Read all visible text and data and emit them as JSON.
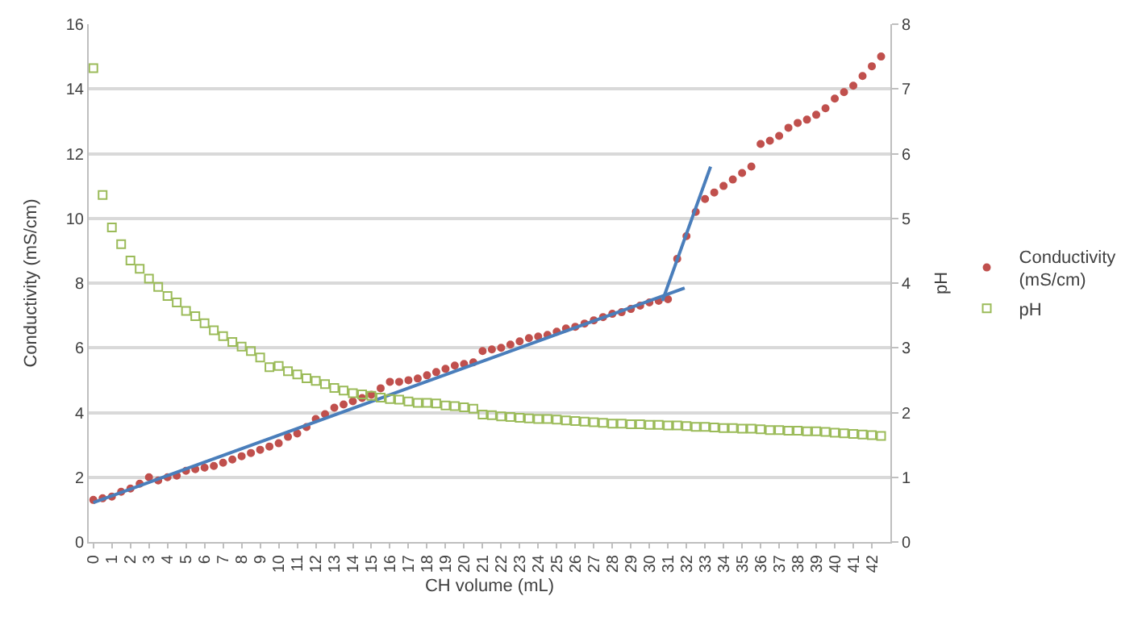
{
  "chart_data": {
    "type": "scatter",
    "xlabel": "CH volume (mL)",
    "ylabel": "Conductivity (mS/cm)",
    "y2label": "pH",
    "xlim": [
      -0.25,
      43
    ],
    "xticks": [
      0,
      1,
      2,
      3,
      4,
      5,
      6,
      7,
      8,
      9,
      10,
      11,
      12,
      13,
      14,
      15,
      16,
      17,
      18,
      19,
      20,
      21,
      22,
      23,
      24,
      25,
      26,
      27,
      28,
      29,
      30,
      31,
      32,
      33,
      34,
      35,
      36,
      37,
      38,
      39,
      40,
      41,
      42
    ],
    "ylim": [
      0,
      16
    ],
    "yticks": [
      0,
      2,
      4,
      6,
      8,
      10,
      12,
      14,
      16
    ],
    "y2lim": [
      0,
      8
    ],
    "y2ticks": [
      0,
      1,
      2,
      3,
      4,
      5,
      6,
      7,
      8
    ],
    "grid": "y",
    "legend": "right",
    "series": [
      {
        "name": "Conductivity (mS/cm)",
        "color": "#c0504d",
        "marker": "circle",
        "x": [
          0,
          0.5,
          1,
          1.5,
          2,
          2.5,
          3,
          3.5,
          4,
          4.5,
          5,
          5.5,
          6,
          6.5,
          7,
          7.5,
          8,
          8.5,
          9,
          9.5,
          10,
          10.5,
          11,
          11.5,
          12,
          12.5,
          13,
          13.5,
          14,
          14.5,
          15,
          15.5,
          16,
          16.5,
          17,
          17.5,
          18,
          18.5,
          19,
          19.5,
          20,
          20.5,
          21,
          21.5,
          22,
          22.5,
          23,
          23.5,
          24,
          24.5,
          25,
          25.5,
          26,
          26.5,
          27,
          27.5,
          28,
          28.5,
          29,
          29.5,
          30,
          30.5,
          31,
          31.5,
          32,
          32.5,
          33,
          33.5,
          34,
          34.5,
          35,
          35.5,
          36,
          36.5,
          37,
          37.5,
          38,
          38.5,
          39,
          39.5,
          40,
          40.5,
          41,
          41.5,
          42,
          42.5
        ],
        "values": [
          1.3,
          1.35,
          1.4,
          1.55,
          1.65,
          1.8,
          2.0,
          1.9,
          2.0,
          2.05,
          2.2,
          2.25,
          2.3,
          2.35,
          2.45,
          2.55,
          2.65,
          2.75,
          2.85,
          2.95,
          3.05,
          3.25,
          3.35,
          3.55,
          3.8,
          3.95,
          4.15,
          4.25,
          4.35,
          4.45,
          4.55,
          4.75,
          4.95,
          4.95,
          5.0,
          5.05,
          5.15,
          5.25,
          5.35,
          5.45,
          5.5,
          5.55,
          5.9,
          5.95,
          6.0,
          6.1,
          6.2,
          6.3,
          6.35,
          6.4,
          6.5,
          6.6,
          6.65,
          6.75,
          6.85,
          6.95,
          7.05,
          7.1,
          7.2,
          7.3,
          7.4,
          7.45,
          7.5,
          8.75,
          9.45,
          10.2,
          10.6,
          10.8,
          11.0,
          11.2,
          11.4,
          11.6,
          12.3,
          12.4,
          12.55,
          12.8,
          12.95,
          13.05,
          13.2,
          13.4,
          13.7,
          13.9,
          14.1,
          14.4,
          14.7,
          15.0
        ]
      },
      {
        "name": "pH",
        "color": "#9bbb59",
        "marker": "square",
        "axis": "y2",
        "x": [
          0,
          0.5,
          1,
          1.5,
          2,
          2.5,
          3,
          3.5,
          4,
          4.5,
          5,
          5.5,
          6,
          6.5,
          7,
          7.5,
          8,
          8.5,
          9,
          9.5,
          10,
          10.5,
          11,
          11.5,
          12,
          12.5,
          13,
          13.5,
          14,
          14.5,
          15,
          15.5,
          16,
          16.5,
          17,
          17.5,
          18,
          18.5,
          19,
          19.5,
          20,
          20.5,
          21,
          21.5,
          22,
          22.5,
          23,
          23.5,
          24,
          24.5,
          25,
          25.5,
          26,
          26.5,
          27,
          27.5,
          28,
          28.5,
          29,
          29.5,
          30,
          30.5,
          31,
          31.5,
          32,
          32.5,
          33,
          33.5,
          34,
          34.5,
          35,
          35.5,
          36,
          36.5,
          37,
          37.5,
          38,
          38.5,
          39,
          39.5,
          40,
          40.5,
          41,
          41.5,
          42,
          42.5
        ],
        "values": [
          7.32,
          5.36,
          4.86,
          4.6,
          4.35,
          4.22,
          4.07,
          3.94,
          3.8,
          3.7,
          3.57,
          3.49,
          3.38,
          3.27,
          3.18,
          3.09,
          3.02,
          2.95,
          2.85,
          2.7,
          2.72,
          2.64,
          2.59,
          2.53,
          2.49,
          2.44,
          2.38,
          2.34,
          2.3,
          2.28,
          2.26,
          2.23,
          2.21,
          2.2,
          2.17,
          2.15,
          2.15,
          2.14,
          2.11,
          2.1,
          2.08,
          2.06,
          1.97,
          1.96,
          1.94,
          1.93,
          1.92,
          1.91,
          1.9,
          1.9,
          1.89,
          1.88,
          1.87,
          1.86,
          1.85,
          1.84,
          1.83,
          1.83,
          1.82,
          1.82,
          1.81,
          1.81,
          1.8,
          1.8,
          1.79,
          1.78,
          1.78,
          1.77,
          1.76,
          1.76,
          1.75,
          1.75,
          1.74,
          1.73,
          1.73,
          1.72,
          1.72,
          1.71,
          1.71,
          1.7,
          1.69,
          1.68,
          1.67,
          1.66,
          1.65,
          1.64
        ]
      },
      {
        "type": "line",
        "color": "#4a7ebb",
        "marker": "none",
        "x": [
          0,
          31.9
        ],
        "values": [
          1.22,
          7.85
        ]
      },
      {
        "type": "line",
        "color": "#4a7ebb",
        "marker": "none",
        "x": [
          30.7,
          33.3
        ],
        "values": [
          7.45,
          11.6
        ]
      }
    ]
  }
}
